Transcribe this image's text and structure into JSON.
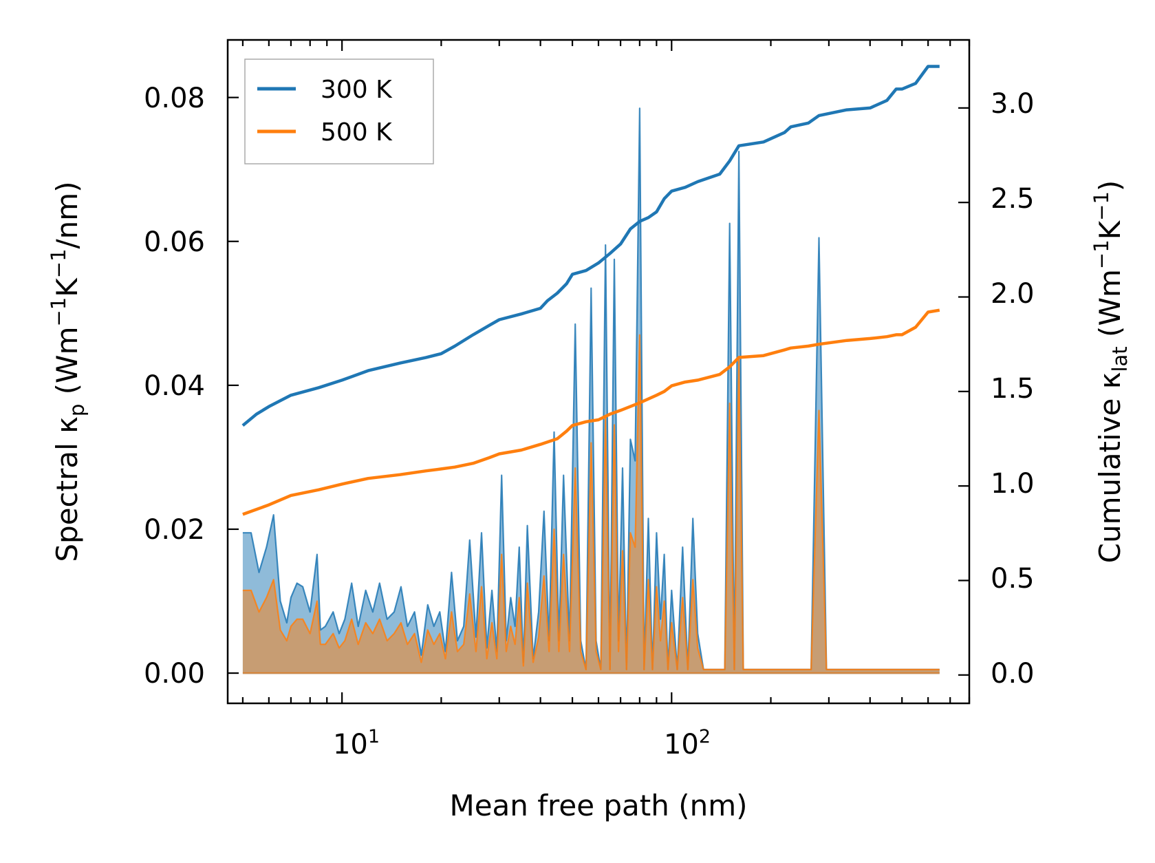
{
  "chart_data": {
    "type": "line",
    "title": "",
    "xlabel": "Mean free path (nm)",
    "ylabel_left": {
      "main": "Spectral κ",
      "sub": "p",
      "unit": "(Wm",
      "e1": "−1",
      "mid": "K",
      "e2": "−1",
      "tail": "/nm)"
    },
    "ylabel_right": {
      "main": "Cumulative κ",
      "sub": "lat",
      "unit": "(Wm",
      "e1": "−1",
      "mid": "K",
      "e2": "−1",
      "tail": ")"
    },
    "xscale": "log",
    "xlim": [
      4.5,
      800
    ],
    "ylim_left": [
      -0.0042,
      0.088
    ],
    "ylim_right": [
      -0.15,
      3.36
    ],
    "x_ticks": [
      {
        "base": "10",
        "exp": "1",
        "value": 10
      },
      {
        "base": "10",
        "exp": "2",
        "value": 100
      }
    ],
    "left_ticks": [
      "0.00",
      "0.02",
      "0.04",
      "0.06",
      "0.08"
    ],
    "left_tick_values": [
      0,
      0.02,
      0.04,
      0.06,
      0.08
    ],
    "right_ticks": [
      "0.0",
      "0.5",
      "1.0",
      "1.5",
      "2.0",
      "2.5",
      "3.0"
    ],
    "right_tick_values": [
      0,
      0.5,
      1.0,
      1.5,
      2.0,
      2.5,
      3.0
    ],
    "legend": {
      "position": "top-left",
      "entries": [
        {
          "label": "300 K",
          "color": "#1f77b4"
        },
        {
          "label": "500 K",
          "color": "#ff7f0e"
        }
      ]
    },
    "cumulative": [
      {
        "name": "300 K",
        "axis": "right",
        "color": "#1f77b4",
        "x": [
          5,
          5.5,
          6,
          7,
          8.5,
          10,
          12,
          15,
          18,
          20,
          22,
          25,
          28,
          30,
          35,
          40,
          42,
          45,
          48,
          50,
          55,
          60,
          65,
          70,
          75,
          80,
          85,
          90,
          95,
          100,
          110,
          120,
          140,
          150,
          160,
          190,
          220,
          230,
          260,
          280,
          340,
          400,
          450,
          480,
          500,
          550,
          600,
          650
        ],
        "y": [
          1.32,
          1.38,
          1.42,
          1.48,
          1.52,
          1.56,
          1.61,
          1.65,
          1.68,
          1.7,
          1.74,
          1.8,
          1.85,
          1.88,
          1.91,
          1.94,
          1.98,
          2.02,
          2.07,
          2.12,
          2.14,
          2.18,
          2.23,
          2.28,
          2.36,
          2.4,
          2.42,
          2.45,
          2.52,
          2.56,
          2.58,
          2.61,
          2.65,
          2.72,
          2.8,
          2.82,
          2.87,
          2.9,
          2.92,
          2.96,
          2.99,
          3.0,
          3.04,
          3.1,
          3.1,
          3.13,
          3.22,
          3.22
        ]
      },
      {
        "name": "500 K",
        "axis": "right",
        "color": "#ff7f0e",
        "x": [
          5,
          6,
          7,
          8.5,
          10,
          12,
          15,
          18,
          20,
          22,
          25,
          28,
          30,
          35,
          40,
          45,
          48,
          50,
          55,
          60,
          65,
          70,
          80,
          90,
          95,
          100,
          110,
          120,
          140,
          150,
          160,
          190,
          220,
          230,
          260,
          280,
          340,
          400,
          450,
          480,
          500,
          550,
          600,
          650
        ],
        "y": [
          0.85,
          0.9,
          0.95,
          0.98,
          1.01,
          1.04,
          1.06,
          1.08,
          1.09,
          1.1,
          1.12,
          1.15,
          1.17,
          1.19,
          1.22,
          1.25,
          1.29,
          1.32,
          1.34,
          1.35,
          1.38,
          1.4,
          1.44,
          1.48,
          1.5,
          1.53,
          1.55,
          1.56,
          1.59,
          1.63,
          1.68,
          1.69,
          1.72,
          1.73,
          1.74,
          1.75,
          1.77,
          1.78,
          1.79,
          1.8,
          1.8,
          1.84,
          1.92,
          1.93
        ]
      }
    ],
    "spectral": [
      {
        "name": "300 K",
        "axis": "left",
        "color": "#1f77b4",
        "x": [
          5.0,
          5.3,
          5.6,
          5.9,
          6.2,
          6.5,
          6.8,
          7.0,
          7.3,
          7.6,
          8.0,
          8.4,
          8.6,
          8.9,
          9.4,
          9.8,
          10.2,
          10.7,
          11.2,
          11.8,
          12.4,
          13.0,
          13.7,
          14.4,
          15.1,
          15.8,
          16.6,
          17.4,
          18.2,
          19.0,
          19.8,
          20.6,
          21.5,
          22.4,
          23.4,
          24.4,
          25.5,
          26.5,
          27.5,
          28.5,
          29.5,
          30.5,
          31.5,
          32.5,
          33.5,
          34.5,
          35.5,
          36.5,
          38.0,
          39.5,
          41.0,
          42.5,
          44.0,
          45.5,
          47.0,
          49.0,
          51.0,
          53.0,
          55.0,
          57.0,
          59.0,
          61.0,
          63.0,
          65.0,
          67.0,
          69.0,
          71.0,
          73.0,
          75.0,
          77.5,
          80.0,
          82.5,
          85.0,
          87.5,
          90.0,
          92.5,
          95.0,
          97.5,
          100.0,
          104.0,
          108.0,
          112.0,
          116.0,
          120.0,
          125.0,
          130.0,
          135.0,
          140.0,
          145.0,
          150.0,
          155.0,
          160.0,
          165.0,
          170.0,
          180.0,
          190.0,
          200.0,
          210.0,
          220.0,
          230.0,
          240.0,
          250.0,
          265.0,
          280.0,
          295.0,
          310.0,
          325.0,
          340.0,
          360.0,
          380.0,
          400.0,
          420.0,
          440.0,
          460.0,
          480.0,
          500.0,
          520.0,
          540.0,
          560.0,
          580.0,
          600.0,
          620.0,
          640.0,
          650.0
        ],
        "y": [
          0.0195,
          0.0195,
          0.014,
          0.0175,
          0.022,
          0.01,
          0.007,
          0.0105,
          0.0125,
          0.012,
          0.0085,
          0.0165,
          0.006,
          0.0065,
          0.0085,
          0.0055,
          0.0075,
          0.0125,
          0.0065,
          0.0115,
          0.0085,
          0.0125,
          0.0075,
          0.0085,
          0.012,
          0.0065,
          0.0085,
          0.0025,
          0.0095,
          0.0065,
          0.0085,
          0.003,
          0.014,
          0.0045,
          0.0065,
          0.0185,
          0.005,
          0.0195,
          0.0035,
          0.0115,
          0.003,
          0.0275,
          0.0045,
          0.0105,
          0.0065,
          0.0175,
          0.0015,
          0.0205,
          0.002,
          0.0085,
          0.0225,
          0.0045,
          0.0335,
          0.0045,
          0.0275,
          0.0045,
          0.0485,
          0.0045,
          0.0005,
          0.0535,
          0.0045,
          0.0005,
          0.0595,
          0.0005,
          0.0575,
          0.0045,
          0.0285,
          0.0005,
          0.0325,
          0.0295,
          0.0785,
          0.0005,
          0.0215,
          0.0005,
          0.0195,
          0.0075,
          0.0165,
          0.0005,
          0.0115,
          0.0005,
          0.0175,
          0.0005,
          0.0215,
          0.0055,
          0.0005,
          0.0005,
          0.0005,
          0.0005,
          0.0005,
          0.0625,
          0.0005,
          0.0725,
          0.0005,
          0.0005,
          0.0005,
          0.0005,
          0.0005,
          0.0005,
          0.0005,
          0.0005,
          0.0005,
          0.0005,
          0.0005,
          0.0605,
          0.0005,
          0.0005,
          0.0005,
          0.0005,
          0.0005,
          0.0005,
          0.0005,
          0.0005,
          0.0005,
          0.0005,
          0.0005,
          0.0005,
          0.0005,
          0.0005,
          0.0005,
          0.0005,
          0.0005,
          0.0005,
          0.0005,
          0.0005
        ]
      },
      {
        "name": "500 K",
        "axis": "left",
        "color": "#ff7f0e",
        "x": [
          5.0,
          5.3,
          5.6,
          5.9,
          6.2,
          6.5,
          6.8,
          7.0,
          7.3,
          7.6,
          8.0,
          8.4,
          8.6,
          8.9,
          9.4,
          9.8,
          10.2,
          10.7,
          11.2,
          11.8,
          12.4,
          13.0,
          13.7,
          14.4,
          15.1,
          15.8,
          16.6,
          17.4,
          18.2,
          19.0,
          19.8,
          20.6,
          21.5,
          22.4,
          23.4,
          24.4,
          25.5,
          26.5,
          27.5,
          28.5,
          29.5,
          30.5,
          31.5,
          32.5,
          33.5,
          34.5,
          35.5,
          36.5,
          38.0,
          39.5,
          41.0,
          42.5,
          44.0,
          45.5,
          47.0,
          49.0,
          51.0,
          53.0,
          55.0,
          57.0,
          59.0,
          61.0,
          63.0,
          65.0,
          67.0,
          69.0,
          71.0,
          73.0,
          75.0,
          77.5,
          80.0,
          82.5,
          85.0,
          87.5,
          90.0,
          92.5,
          95.0,
          97.5,
          100.0,
          104.0,
          108.0,
          112.0,
          116.0,
          120.0,
          125.0,
          130.0,
          135.0,
          140.0,
          145.0,
          150.0,
          155.0,
          160.0,
          165.0,
          170.0,
          180.0,
          190.0,
          200.0,
          210.0,
          220.0,
          230.0,
          240.0,
          250.0,
          265.0,
          280.0,
          295.0,
          310.0,
          325.0,
          340.0,
          360.0,
          380.0,
          400.0,
          420.0,
          440.0,
          460.0,
          480.0,
          500.0,
          520.0,
          540.0,
          560.0,
          580.0,
          600.0,
          620.0,
          640.0,
          650.0
        ],
        "y": [
          0.0115,
          0.0115,
          0.0085,
          0.0105,
          0.013,
          0.006,
          0.0045,
          0.0065,
          0.0075,
          0.0075,
          0.0055,
          0.01,
          0.004,
          0.004,
          0.0055,
          0.0035,
          0.0045,
          0.0075,
          0.004,
          0.007,
          0.0055,
          0.0075,
          0.0045,
          0.0055,
          0.007,
          0.004,
          0.0055,
          0.0015,
          0.006,
          0.004,
          0.0055,
          0.002,
          0.0085,
          0.003,
          0.004,
          0.011,
          0.003,
          0.012,
          0.002,
          0.007,
          0.002,
          0.0165,
          0.003,
          0.0065,
          0.004,
          0.0105,
          0.001,
          0.0125,
          0.0015,
          0.005,
          0.0135,
          0.003,
          0.02,
          0.003,
          0.0165,
          0.003,
          0.0285,
          0.003,
          0.0005,
          0.032,
          0.003,
          0.0005,
          0.0355,
          0.0005,
          0.0345,
          0.003,
          0.017,
          0.0005,
          0.0195,
          0.0175,
          0.047,
          0.0005,
          0.013,
          0.0005,
          0.012,
          0.0045,
          0.01,
          0.0005,
          0.007,
          0.0005,
          0.0105,
          0.0005,
          0.013,
          0.0035,
          0.0005,
          0.0005,
          0.0005,
          0.0005,
          0.0005,
          0.0375,
          0.0005,
          0.0435,
          0.0005,
          0.0005,
          0.0005,
          0.0005,
          0.0005,
          0.0005,
          0.0005,
          0.0005,
          0.0005,
          0.0005,
          0.0005,
          0.0365,
          0.0005,
          0.0005,
          0.0005,
          0.0005,
          0.0005,
          0.0005,
          0.0005,
          0.0005,
          0.0005,
          0.0005,
          0.0005,
          0.0005,
          0.0005,
          0.0005,
          0.0005,
          0.0005,
          0.0005,
          0.0005,
          0.0005,
          0.0005
        ]
      }
    ]
  }
}
